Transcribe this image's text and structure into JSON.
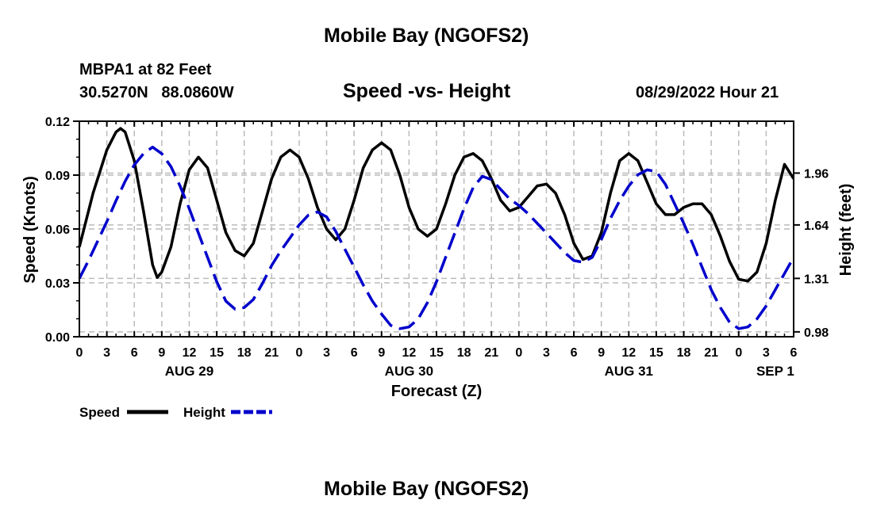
{
  "page_title": "Mobile Bay (NGOFS2)",
  "second_title": "Mobile Bay (NGOFS2)",
  "station_line": "MBPA1 at 82 Feet",
  "coords_line": "30.5270N   88.0860W",
  "chart_title": "Speed -vs- Height",
  "timestamp": "08/29/2022 Hour 21",
  "colors": {
    "speed": "#000000",
    "height": "#0000cc",
    "grid": "#bbbbbb"
  },
  "chart_data": {
    "type": "line",
    "title": "Speed -vs- Height",
    "xlabel": "Forecast (Z)",
    "ylabel": "Speed (Knots)",
    "y2label": "Height (feet)",
    "xlim": [
      0,
      78
    ],
    "ylim": [
      0,
      0.12
    ],
    "y2lim": [
      0.95,
      2.28
    ],
    "yticks": [
      0.0,
      0.03,
      0.06,
      0.09,
      0.12
    ],
    "ytick_labels": [
      "0.00",
      "0.03",
      "0.06",
      "0.09",
      "0.12"
    ],
    "y2ticks": [
      0.98,
      1.31,
      1.64,
      1.96
    ],
    "y2tick_labels": [
      "0.98",
      "1.31",
      "1.64",
      "1.96"
    ],
    "xtick_labels": [
      "0",
      "3",
      "6",
      "9",
      "12",
      "15",
      "18",
      "21",
      "0",
      "3",
      "6",
      "9",
      "12",
      "15",
      "18",
      "21",
      "0",
      "3",
      "6",
      "9",
      "12",
      "15",
      "18",
      "21",
      "0",
      "3",
      "6"
    ],
    "day_labels": [
      {
        "text": "AUG 29",
        "x": 12
      },
      {
        "text": "AUG 30",
        "x": 36
      },
      {
        "text": "AUG 31",
        "x": 60
      },
      {
        "text": "SEP 1",
        "x": 76
      }
    ],
    "grid": true,
    "series": [
      {
        "name": "Speed",
        "axis": "left",
        "style": "solid",
        "x": [
          0,
          1.5,
          3,
          4,
          4.5,
          5,
          6,
          7,
          8,
          8.5,
          9,
          10,
          11,
          12,
          13,
          14,
          15,
          16,
          17,
          18,
          19,
          20,
          21,
          22,
          23,
          24,
          25,
          26,
          27,
          28,
          29,
          30,
          31,
          32,
          33,
          34,
          35,
          36,
          37,
          38,
          39,
          40,
          41,
          42,
          43,
          44,
          45,
          46,
          47,
          48,
          49,
          50,
          51,
          52,
          53,
          54,
          55,
          56,
          57,
          58,
          59,
          60,
          61,
          62,
          63,
          64,
          65,
          66,
          67,
          68,
          69,
          70,
          71,
          72,
          73,
          74,
          75,
          76,
          77,
          78
        ],
        "values": [
          0.05,
          0.08,
          0.104,
          0.114,
          0.116,
          0.114,
          0.098,
          0.07,
          0.04,
          0.033,
          0.036,
          0.05,
          0.074,
          0.093,
          0.1,
          0.094,
          0.076,
          0.058,
          0.048,
          0.045,
          0.052,
          0.07,
          0.088,
          0.1,
          0.104,
          0.1,
          0.088,
          0.072,
          0.06,
          0.054,
          0.06,
          0.076,
          0.094,
          0.104,
          0.108,
          0.104,
          0.09,
          0.072,
          0.06,
          0.056,
          0.06,
          0.074,
          0.09,
          0.1,
          0.102,
          0.098,
          0.088,
          0.076,
          0.07,
          0.072,
          0.078,
          0.084,
          0.085,
          0.08,
          0.068,
          0.052,
          0.043,
          0.045,
          0.058,
          0.08,
          0.098,
          0.102,
          0.098,
          0.086,
          0.074,
          0.068,
          0.068,
          0.072,
          0.074,
          0.074,
          0.068,
          0.056,
          0.042,
          0.032,
          0.031,
          0.036,
          0.052,
          0.076,
          0.096,
          0.088
        ]
      },
      {
        "name": "Height",
        "axis": "right",
        "style": "dashed",
        "x": [
          0,
          1,
          2,
          3,
          4,
          5,
          6,
          7,
          8,
          9,
          10,
          11,
          12,
          13,
          14,
          15,
          16,
          17,
          18,
          19,
          20,
          21,
          22,
          23,
          24,
          25,
          26,
          27,
          28,
          29,
          30,
          31,
          32,
          33,
          34,
          35,
          36,
          37,
          38,
          39,
          40,
          41,
          42,
          43,
          44,
          45,
          46,
          47,
          48,
          49,
          50,
          51,
          52,
          53,
          54,
          55,
          56,
          57,
          58,
          59,
          60,
          61,
          62,
          63,
          64,
          65,
          66,
          67,
          68,
          69,
          70,
          71,
          72,
          73,
          74,
          75,
          76,
          77,
          78
        ],
        "values": [
          1.31,
          1.42,
          1.54,
          1.66,
          1.79,
          1.91,
          2.01,
          2.08,
          2.12,
          2.08,
          2.0,
          1.88,
          1.74,
          1.59,
          1.44,
          1.29,
          1.17,
          1.12,
          1.13,
          1.18,
          1.28,
          1.39,
          1.48,
          1.56,
          1.64,
          1.7,
          1.72,
          1.69,
          1.6,
          1.49,
          1.38,
          1.27,
          1.17,
          1.09,
          1.02,
          1.0,
          1.01,
          1.06,
          1.16,
          1.29,
          1.44,
          1.59,
          1.74,
          1.87,
          1.94,
          1.92,
          1.86,
          1.8,
          1.76,
          1.71,
          1.65,
          1.59,
          1.53,
          1.47,
          1.42,
          1.41,
          1.44,
          1.55,
          1.68,
          1.79,
          1.88,
          1.95,
          1.98,
          1.97,
          1.89,
          1.77,
          1.65,
          1.52,
          1.38,
          1.24,
          1.13,
          1.04,
          1.0,
          1.01,
          1.06,
          1.14,
          1.24,
          1.34,
          1.44
        ]
      }
    ],
    "legend": [
      {
        "label": "Speed",
        "style": "solid"
      },
      {
        "label": "Height",
        "style": "dashed"
      }
    ],
    "legend_position": "bottom-left"
  }
}
